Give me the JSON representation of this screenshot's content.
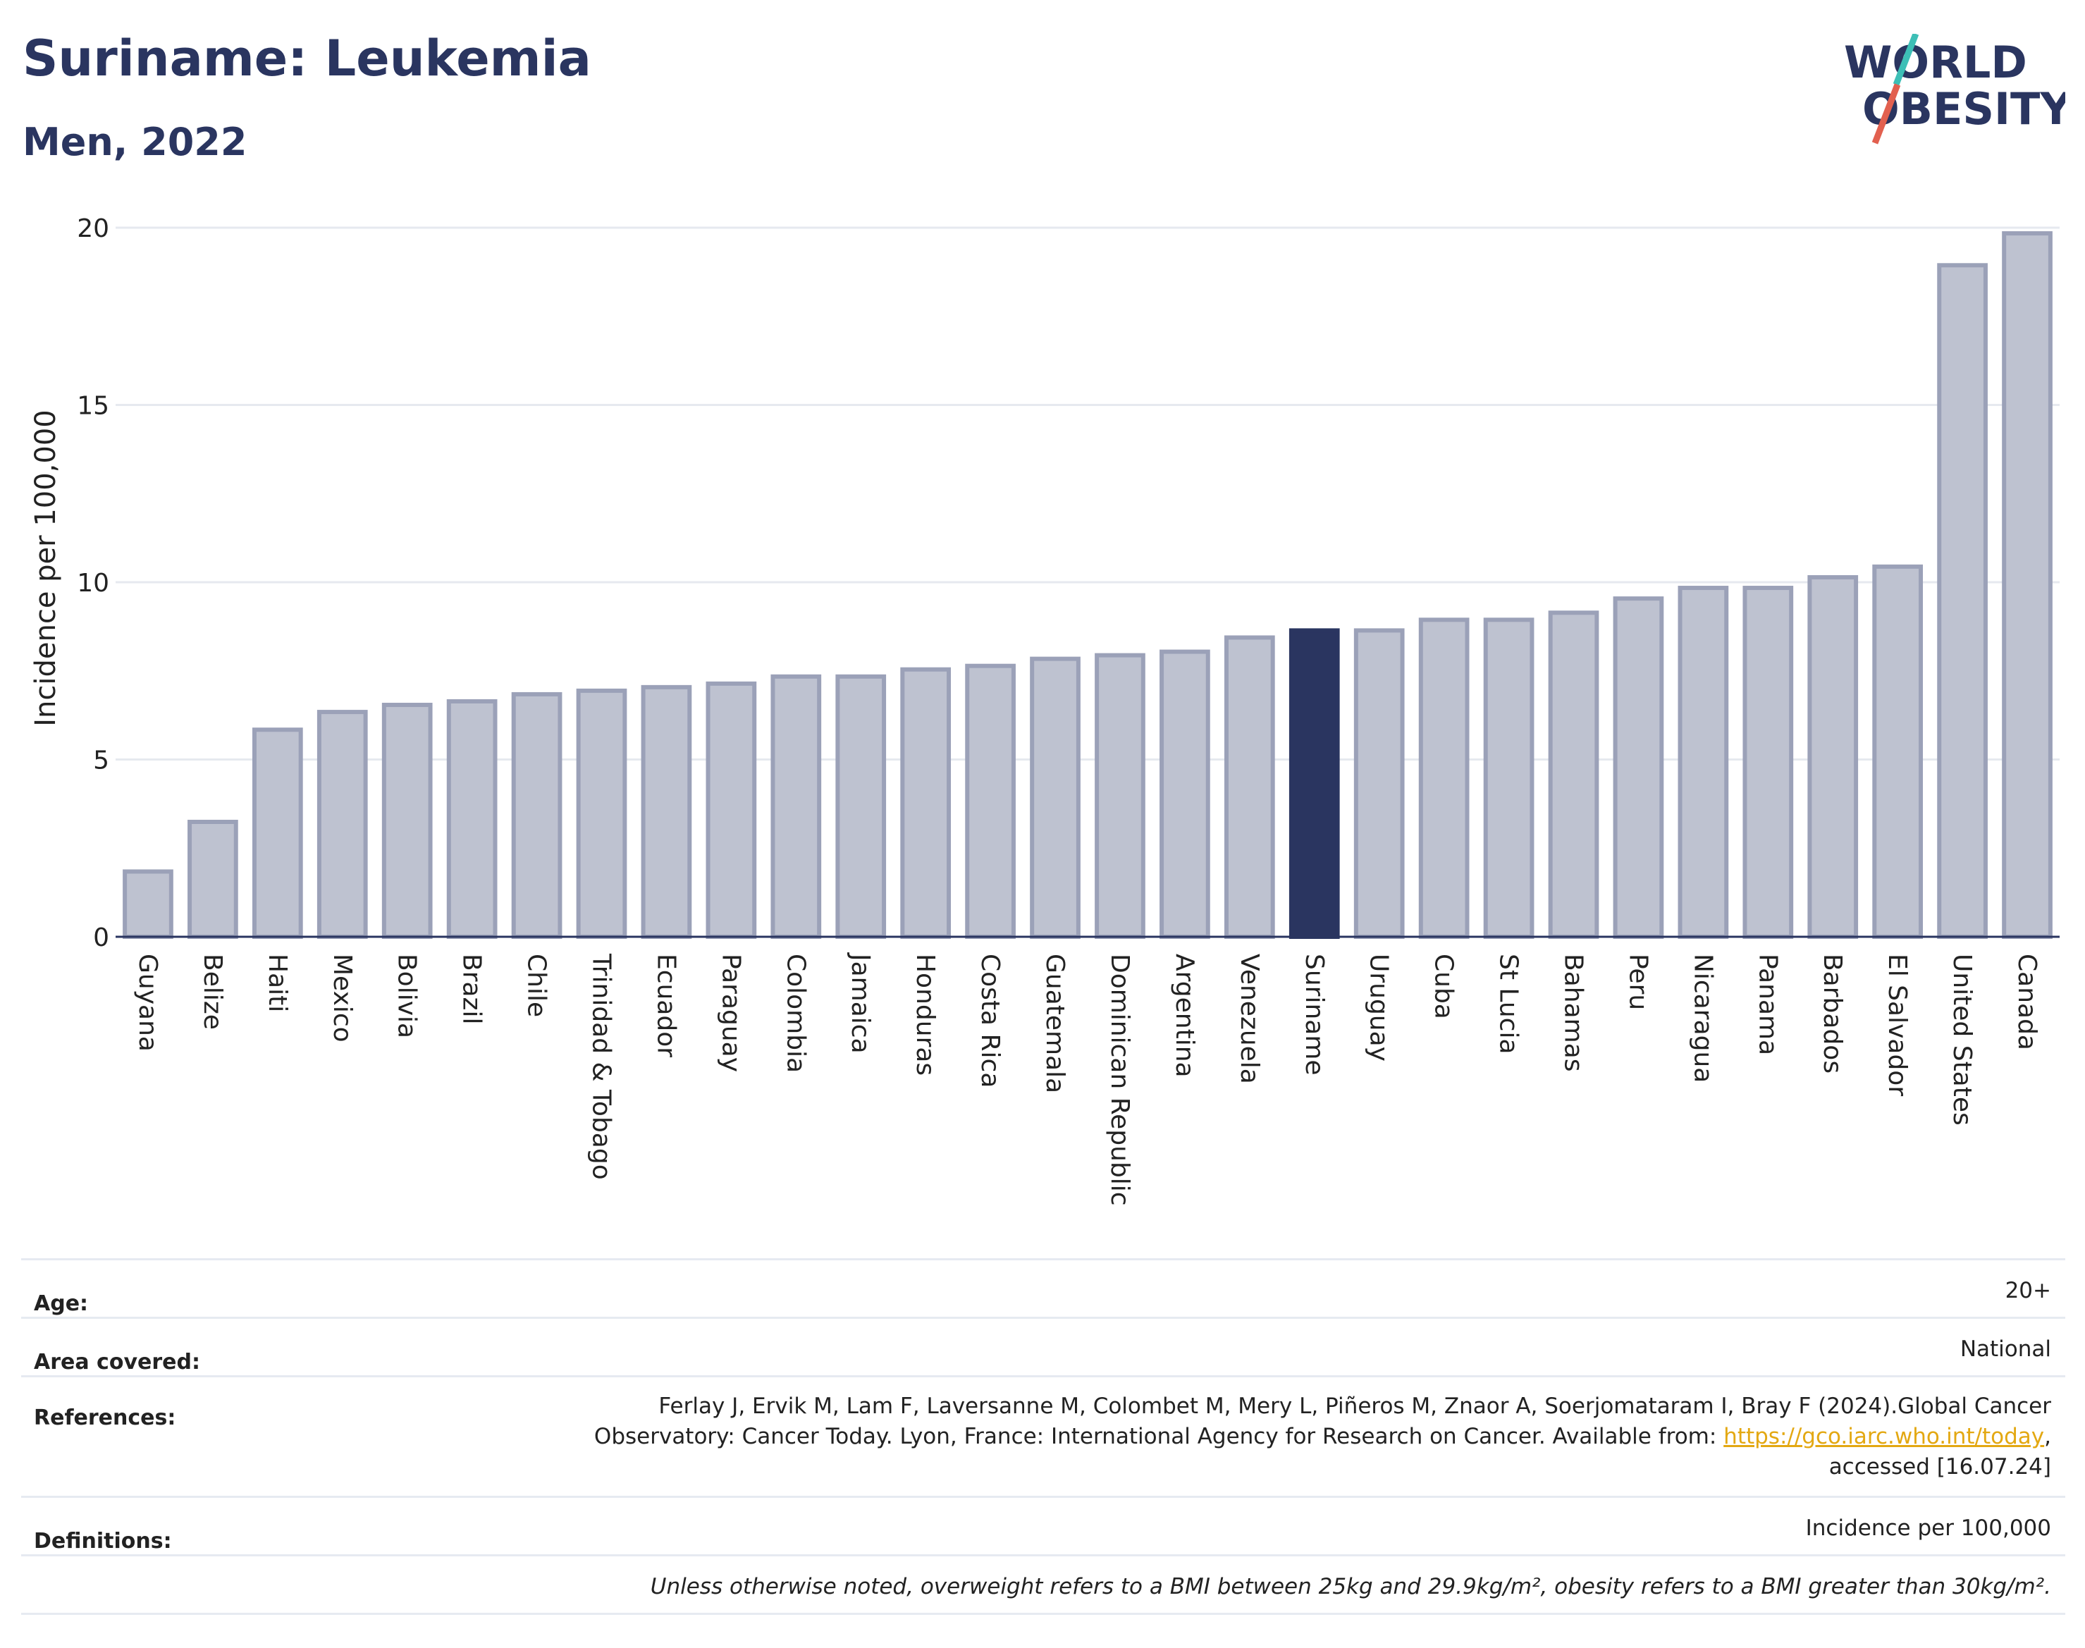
{
  "header": {
    "title": "Suriname: Leukemia",
    "subtitle": "Men, 2022",
    "logo_line1": "WORLD",
    "logo_line2": "OBESITY"
  },
  "colors": {
    "title": "#2a3560",
    "bar_default": "#bec2d0",
    "bar_default_border": "#9ba1b8",
    "bar_highlight": "#2a3560",
    "logo_text": "#2a3560",
    "logo_slash_teal": "#3dbfb6",
    "logo_slash_red": "#e2604f",
    "link": "#e3a812"
  },
  "chart_data": {
    "type": "bar",
    "title": "",
    "xlabel": "",
    "ylabel": "Incidence per 100,000",
    "ylim": [
      0,
      20
    ],
    "yticks": [
      0,
      5,
      10,
      15,
      20
    ],
    "grid": true,
    "highlight": "Suriname",
    "categories": [
      "Guyana",
      "Belize",
      "Haiti",
      "Mexico",
      "Bolivia",
      "Brazil",
      "Chile",
      "Trinidad & Tobago",
      "Ecuador",
      "Paraguay",
      "Colombia",
      "Jamaica",
      "Honduras",
      "Costa Rica",
      "Guatemala",
      "Dominican Republic",
      "Argentina",
      "Venezuela",
      "Suriname",
      "Uruguay",
      "Cuba",
      "St Lucia",
      "Bahamas",
      "Peru",
      "Nicaragua",
      "Panama",
      "Barbados",
      "El Salvador",
      "United States",
      "Canada"
    ],
    "values": [
      1.9,
      3.3,
      5.9,
      6.4,
      6.6,
      6.7,
      6.9,
      7.0,
      7.1,
      7.2,
      7.4,
      7.4,
      7.6,
      7.7,
      7.9,
      8.0,
      8.1,
      8.5,
      8.7,
      8.7,
      9.0,
      9.0,
      9.2,
      9.6,
      9.9,
      9.9,
      10.2,
      10.5,
      19.0,
      19.9
    ]
  },
  "info": {
    "age_label": "Age:",
    "age_value": "20+",
    "area_label": "Area covered:",
    "area_value": "National",
    "references_label": "References:",
    "references_line1": "Ferlay J, Ervik M, Lam F, Laversanne M, Colombet M, Mery L, Piñeros M, Znaor A, Soerjomataram I, Bray F (2024).Global Cancer",
    "references_line2_pre": "Observatory: Cancer Today. Lyon, France: International Agency for Research on Cancer. Available from: ",
    "references_link": "https://gco.iarc.who.int/today",
    "references_line2_post": ",",
    "references_line3": "accessed [16.07.24]",
    "definitions_label": "Definitions:",
    "definitions_value": "Incidence per 100,000",
    "note": "Unless otherwise noted, overweight refers to a BMI between 25kg and 29.9kg/m², obesity refers to a BMI greater than 30kg/m²."
  }
}
